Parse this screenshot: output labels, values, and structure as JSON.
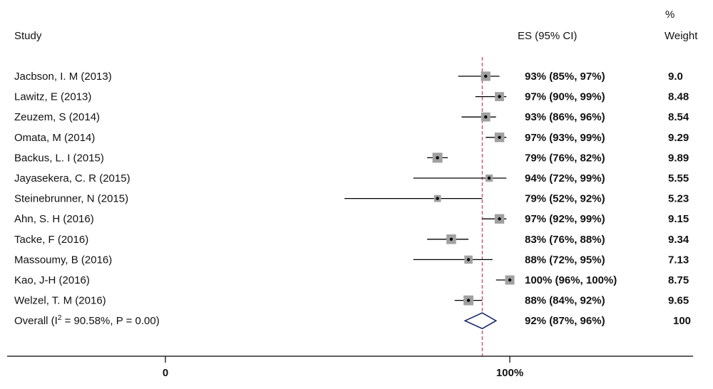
{
  "headers": {
    "study": "Study",
    "es": "ES (95% CI)",
    "weight_pct": "%",
    "weight": "Weight"
  },
  "chart_data": {
    "type": "forest",
    "x_axis_ticks": [
      {
        "value": 0,
        "label": "0"
      },
      {
        "value": 100,
        "label": "100%"
      }
    ],
    "xlim": [
      -50,
      150
    ],
    "reference_line": 92,
    "studies": [
      {
        "study": "Jacbson, I. M (2013)",
        "es": 93,
        "lo": 85,
        "hi": 97,
        "es_text": "93% (85%, 97%)",
        "weight": "9.0"
      },
      {
        "study": "Lawitz, E (2013)",
        "es": 97,
        "lo": 90,
        "hi": 99,
        "es_text": "97% (90%, 99%)",
        "weight": "8.48"
      },
      {
        "study": "Zeuzem, S (2014)",
        "es": 93,
        "lo": 86,
        "hi": 96,
        "es_text": "93% (86%, 96%)",
        "weight": "8.54"
      },
      {
        "study": "Omata, M (2014)",
        "es": 97,
        "lo": 93,
        "hi": 99,
        "es_text": "97% (93%, 99%)",
        "weight": "9.29"
      },
      {
        "study": "Backus, L. I (2015)",
        "es": 79,
        "lo": 76,
        "hi": 82,
        "es_text": "79% (76%, 82%)",
        "weight": "9.89"
      },
      {
        "study": "Jayasekera, C. R (2015)",
        "es": 94,
        "lo": 72,
        "hi": 99,
        "es_text": "94% (72%, 99%)",
        "weight": "5.55"
      },
      {
        "study": "Steinebrunner, N (2015)",
        "es": 79,
        "lo": 52,
        "hi": 92,
        "es_text": "79% (52%, 92%)",
        "weight": "5.23"
      },
      {
        "study": "Ahn, S. H (2016)",
        "es": 97,
        "lo": 92,
        "hi": 99,
        "es_text": "97% (92%, 99%)",
        "weight": "9.15"
      },
      {
        "study": "Tacke, F (2016)",
        "es": 83,
        "lo": 76,
        "hi": 88,
        "es_text": "83% (76%, 88%)",
        "weight": "9.34"
      },
      {
        "study": "Massoumy, B (2016)",
        "es": 88,
        "lo": 72,
        "hi": 95,
        "es_text": "88% (72%, 95%)",
        "weight": "7.13"
      },
      {
        "study": "Kao, J-H (2016)",
        "es": 100,
        "lo": 96,
        "hi": 100,
        "es_text": "100% (96%, 100%)",
        "weight": "8.75"
      },
      {
        "study": "Welzel, T. M (2016)",
        "es": 88,
        "lo": 84,
        "hi": 92,
        "es_text": "88% (84%, 92%)",
        "weight": "9.65"
      }
    ],
    "overall": {
      "label_prefix": "Overall  (I",
      "label_sup": "2",
      "label_suffix": " = 90.58%, P = 0.00)",
      "es": 92,
      "lo": 87,
      "hi": 96,
      "es_text": "92% (87%, 96%)",
      "weight": "100"
    },
    "colors": {
      "ci_line": "#000000",
      "box": "#a0a0a0",
      "diamond": "#1a2a6c",
      "reference": "#b05060"
    }
  }
}
